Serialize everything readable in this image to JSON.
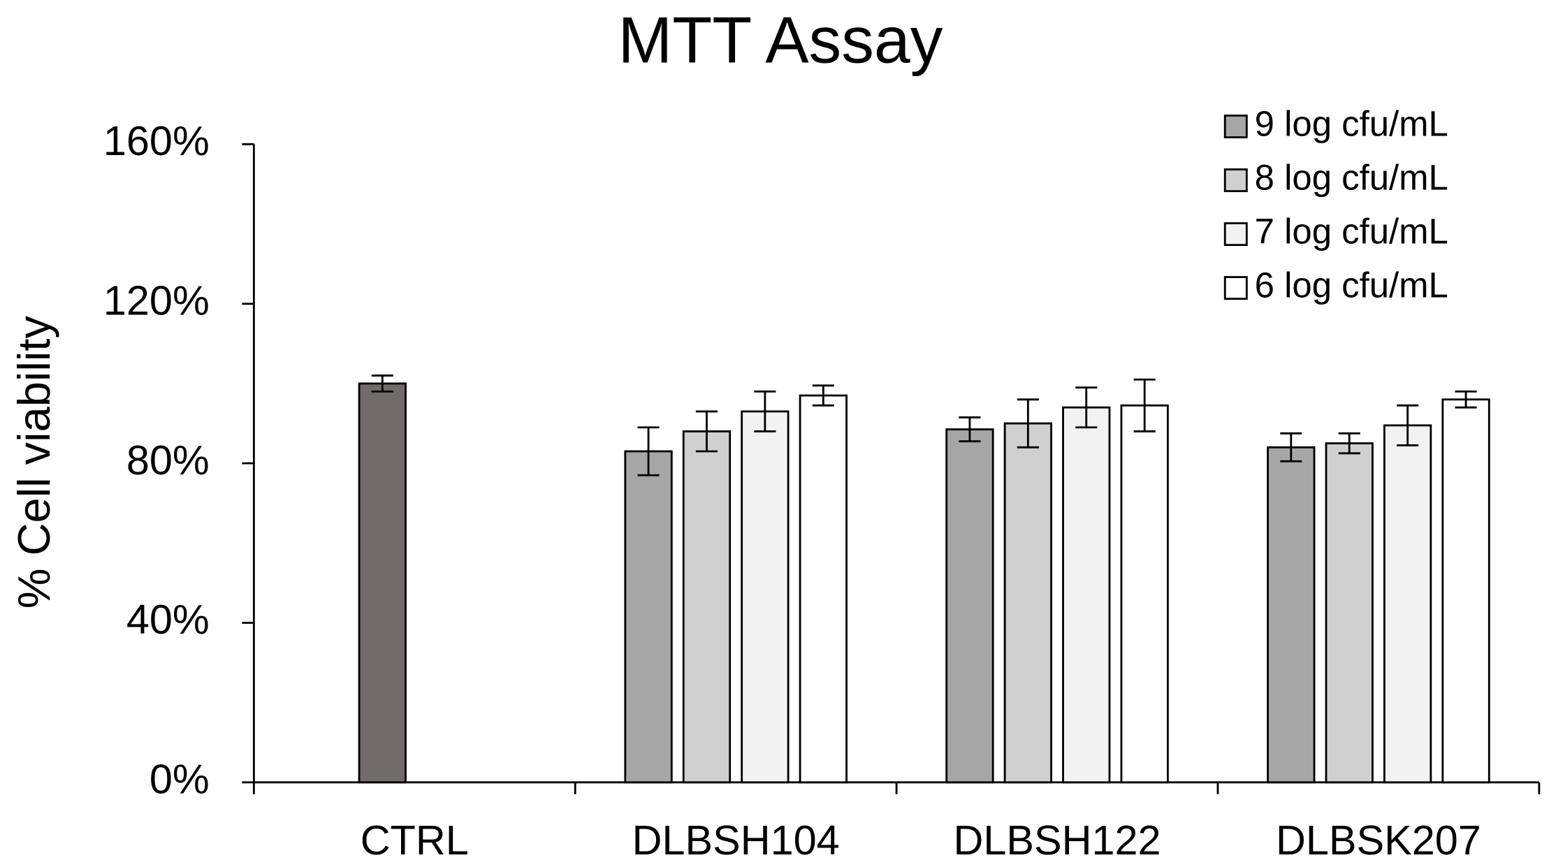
{
  "chart_data": {
    "type": "bar",
    "title": "MTT Assay",
    "y_label": "% Cell viability",
    "categories": [
      "CTRL",
      "DLBSH104",
      "DLBSH122",
      "DLBSK207"
    ],
    "control_value": 100,
    "control_error": 2,
    "control_color": "#716b6b",
    "series": [
      {
        "name": "9 log cfu/mL",
        "color": "#a6a6a6",
        "values": [
          null,
          83,
          88.5,
          84
        ],
        "errors": [
          null,
          6,
          3,
          3.5
        ]
      },
      {
        "name": "8 log cfu/mL",
        "color": "#d0d0d0",
        "values": [
          null,
          88,
          90,
          85
        ],
        "errors": [
          null,
          5,
          6,
          2.5
        ]
      },
      {
        "name": "7 log cfu/mL",
        "color": "#f2f2f2",
        "values": [
          null,
          93,
          94,
          89.5
        ],
        "errors": [
          null,
          5,
          5,
          5
        ]
      },
      {
        "name": "6 log cfu/mL",
        "color": "#ffffff",
        "values": [
          null,
          97,
          94.5,
          96
        ],
        "errors": [
          null,
          2.5,
          6.5,
          2
        ]
      }
    ],
    "ylim": [
      0,
      160
    ],
    "yticks": [
      {
        "value": 0,
        "label": "0%"
      },
      {
        "value": 40,
        "label": "40%"
      },
      {
        "value": 80,
        "label": "80%"
      },
      {
        "value": 120,
        "label": "120%"
      },
      {
        "value": 160,
        "label": "160%"
      }
    ],
    "legend": "top-right",
    "grid": false
  }
}
